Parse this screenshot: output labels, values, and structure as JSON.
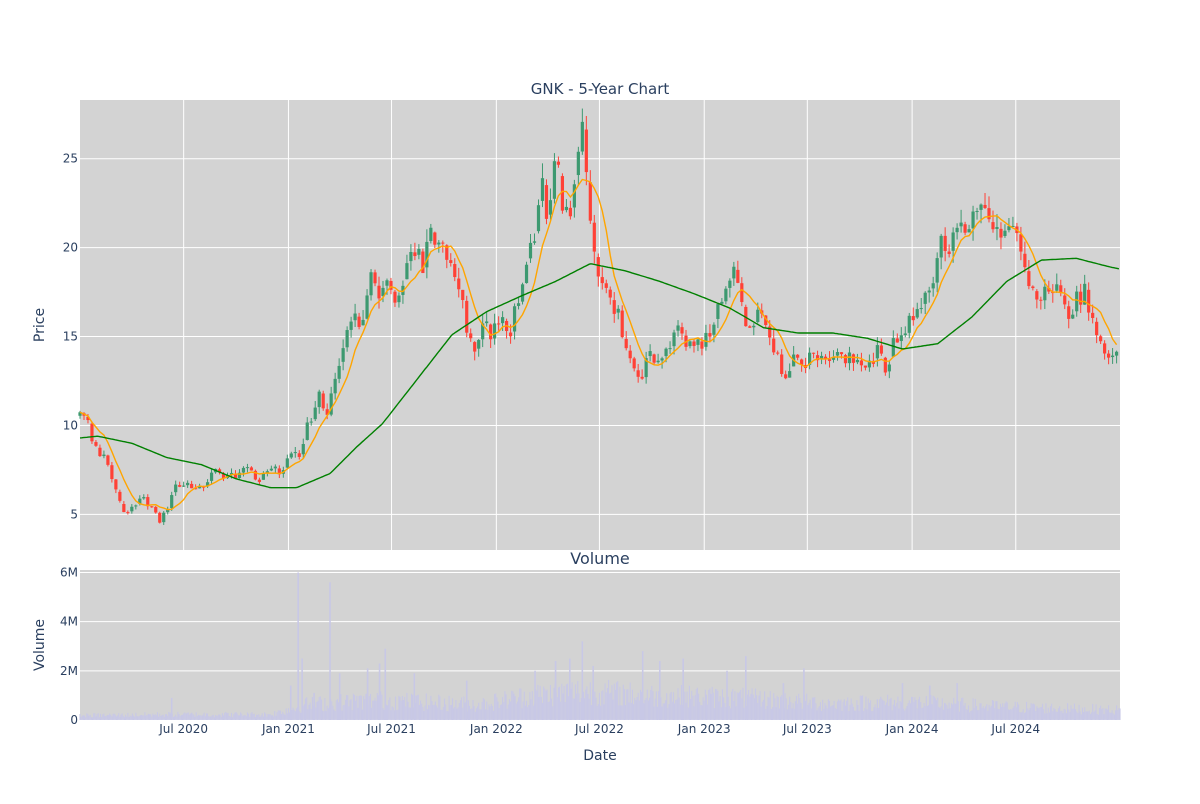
{
  "chart_data": [
    {
      "type": "candlestick",
      "title": "GNK - 5-Year Chart",
      "xlabel": "",
      "ylabel": "Price",
      "x_range": [
        "2020-01-01",
        "2024-12-31"
      ],
      "ylim": [
        3,
        28.3
      ],
      "y_ticks": [
        5,
        10,
        15,
        20,
        25
      ],
      "grid": true,
      "colors": {
        "plot_bg": "#d3d3d3",
        "grid": "#ffffff",
        "increasing": "#3d9970",
        "decreasing": "#ff4136",
        "ma_short": "#ffa500",
        "ma_long": "#008000"
      },
      "price_path": [
        [
          "2020-01-01",
          10.5
        ],
        [
          "2020-01-15",
          10.0
        ],
        [
          "2020-02-01",
          8.5
        ],
        [
          "2020-02-20",
          7.8
        ],
        [
          "2020-03-05",
          6.2
        ],
        [
          "2020-03-20",
          4.8
        ],
        [
          "2020-04-05",
          5.6
        ],
        [
          "2020-04-20",
          6.0
        ],
        [
          "2020-05-05",
          5.4
        ],
        [
          "2020-05-20",
          4.7
        ],
        [
          "2020-06-01",
          5.2
        ],
        [
          "2020-06-15",
          6.6
        ],
        [
          "2020-07-01",
          6.8
        ],
        [
          "2020-07-20",
          6.2
        ],
        [
          "2020-08-05",
          6.6
        ],
        [
          "2020-08-25",
          7.6
        ],
        [
          "2020-09-10",
          6.9
        ],
        [
          "2020-10-01",
          7.3
        ],
        [
          "2020-10-20",
          7.6
        ],
        [
          "2020-11-10",
          7.0
        ],
        [
          "2020-12-01",
          7.6
        ],
        [
          "2020-12-20",
          7.3
        ],
        [
          "2021-01-05",
          8.4
        ],
        [
          "2021-01-20",
          8.1
        ],
        [
          "2021-02-05",
          10.2
        ],
        [
          "2021-02-25",
          11.6
        ],
        [
          "2021-03-10",
          10.6
        ],
        [
          "2021-03-25",
          12.8
        ],
        [
          "2021-04-10",
          15.2
        ],
        [
          "2021-04-25",
          16.3
        ],
        [
          "2021-05-10",
          15.6
        ],
        [
          "2021-05-25",
          18.8
        ],
        [
          "2021-06-10",
          17.6
        ],
        [
          "2021-06-25",
          18.3
        ],
        [
          "2021-07-10",
          17.2
        ],
        [
          "2021-07-25",
          18.6
        ],
        [
          "2021-08-10",
          20.2
        ],
        [
          "2021-08-25",
          19.2
        ],
        [
          "2021-09-05",
          21.1
        ],
        [
          "2021-09-20",
          19.6
        ],
        [
          "2021-10-01",
          20.3
        ],
        [
          "2021-10-15",
          18.2
        ],
        [
          "2021-10-30",
          17.1
        ],
        [
          "2021-11-10",
          15.6
        ],
        [
          "2021-11-25",
          14.6
        ],
        [
          "2021-12-10",
          15.9
        ],
        [
          "2021-12-25",
          14.9
        ],
        [
          "2022-01-10",
          16.6
        ],
        [
          "2022-01-25",
          15.3
        ],
        [
          "2022-02-10",
          17.6
        ],
        [
          "2022-02-25",
          19.6
        ],
        [
          "2022-03-10",
          21.2
        ],
        [
          "2022-03-20",
          23.6
        ],
        [
          "2022-04-01",
          21.6
        ],
        [
          "2022-04-15",
          24.9
        ],
        [
          "2022-04-30",
          22.3
        ],
        [
          "2022-05-10",
          21.6
        ],
        [
          "2022-05-20",
          24.6
        ],
        [
          "2022-06-01",
          26.4
        ],
        [
          "2022-06-10",
          22.6
        ],
        [
          "2022-06-20",
          19.6
        ],
        [
          "2022-07-01",
          18.6
        ],
        [
          "2022-07-15",
          17.6
        ],
        [
          "2022-07-30",
          16.6
        ],
        [
          "2022-08-10",
          15.2
        ],
        [
          "2022-08-25",
          13.6
        ],
        [
          "2022-09-10",
          12.4
        ],
        [
          "2022-09-25",
          13.9
        ],
        [
          "2022-10-10",
          13.4
        ],
        [
          "2022-10-25",
          14.1
        ],
        [
          "2022-11-10",
          15.6
        ],
        [
          "2022-11-25",
          14.6
        ],
        [
          "2022-12-10",
          15.1
        ],
        [
          "2022-12-25",
          14.6
        ],
        [
          "2023-01-10",
          15.3
        ],
        [
          "2023-01-25",
          16.6
        ],
        [
          "2023-02-10",
          18.1
        ],
        [
          "2023-02-25",
          19.1
        ],
        [
          "2023-03-10",
          16.3
        ],
        [
          "2023-03-25",
          15.1
        ],
        [
          "2023-04-10",
          16.6
        ],
        [
          "2023-04-25",
          15.3
        ],
        [
          "2023-05-10",
          13.6
        ],
        [
          "2023-05-25",
          12.9
        ],
        [
          "2023-06-10",
          14.1
        ],
        [
          "2023-06-25",
          13.6
        ],
        [
          "2023-07-10",
          14.1
        ],
        [
          "2023-08-01",
          13.4
        ],
        [
          "2023-08-20",
          14.3
        ],
        [
          "2023-09-10",
          13.6
        ],
        [
          "2023-09-30",
          13.9
        ],
        [
          "2023-10-15",
          13.4
        ],
        [
          "2023-11-01",
          14.3
        ],
        [
          "2023-11-15",
          13.1
        ],
        [
          "2023-12-01",
          14.6
        ],
        [
          "2023-12-20",
          15.6
        ],
        [
          "2024-01-05",
          16.3
        ],
        [
          "2024-01-20",
          17.1
        ],
        [
          "2024-02-05",
          18.1
        ],
        [
          "2024-02-20",
          20.3
        ],
        [
          "2024-03-05",
          20.1
        ],
        [
          "2024-03-20",
          20.6
        ],
        [
          "2024-04-05",
          20.9
        ],
        [
          "2024-04-20",
          22.6
        ],
        [
          "2024-05-01",
          23.1
        ],
        [
          "2024-05-15",
          21.6
        ],
        [
          "2024-06-01",
          21.1
        ],
        [
          "2024-06-15",
          20.6
        ],
        [
          "2024-07-01",
          20.9
        ],
        [
          "2024-07-15",
          19.1
        ],
        [
          "2024-08-01",
          17.6
        ],
        [
          "2024-08-15",
          17.1
        ],
        [
          "2024-09-01",
          17.6
        ],
        [
          "2024-09-15",
          18.6
        ],
        [
          "2024-10-01",
          16.1
        ],
        [
          "2024-10-15",
          17.1
        ],
        [
          "2024-11-01",
          17.6
        ],
        [
          "2024-11-15",
          15.6
        ],
        [
          "2024-12-01",
          14.6
        ],
        [
          "2024-12-15",
          13.9
        ],
        [
          "2024-12-31",
          13.8
        ]
      ],
      "ma_long_path": [
        [
          "2020-01-01",
          9.3
        ],
        [
          "2020-02-01",
          9.4
        ],
        [
          "2020-04-01",
          9.0
        ],
        [
          "2020-06-01",
          8.2
        ],
        [
          "2020-08-01",
          7.8
        ],
        [
          "2020-10-01",
          7.0
        ],
        [
          "2020-12-01",
          6.5
        ],
        [
          "2021-01-15",
          6.5
        ],
        [
          "2021-03-15",
          7.3
        ],
        [
          "2021-05-01",
          8.8
        ],
        [
          "2021-06-15",
          10.1
        ],
        [
          "2021-08-15",
          12.6
        ],
        [
          "2021-10-15",
          15.1
        ],
        [
          "2021-12-15",
          16.4
        ],
        [
          "2022-02-15",
          17.3
        ],
        [
          "2022-04-15",
          18.1
        ],
        [
          "2022-06-15",
          19.1
        ],
        [
          "2022-08-15",
          18.7
        ],
        [
          "2022-10-15",
          18.1
        ],
        [
          "2022-12-15",
          17.4
        ],
        [
          "2023-02-15",
          16.6
        ],
        [
          "2023-04-15",
          15.5
        ],
        [
          "2023-06-15",
          15.2
        ],
        [
          "2023-08-15",
          15.2
        ],
        [
          "2023-10-15",
          14.9
        ],
        [
          "2023-12-15",
          14.3
        ],
        [
          "2024-02-15",
          14.6
        ],
        [
          "2024-04-15",
          16.1
        ],
        [
          "2024-06-15",
          18.1
        ],
        [
          "2024-08-15",
          19.3
        ],
        [
          "2024-10-15",
          19.4
        ],
        [
          "2024-12-15",
          18.9
        ],
        [
          "2024-12-31",
          18.8
        ]
      ]
    },
    {
      "type": "bar",
      "title": "Volume",
      "xlabel": "Date",
      "ylabel": "Volume",
      "x_ticks": [
        "Jul 2020",
        "Jan 2021",
        "Jul 2021",
        "Jan 2022",
        "Jul 2022",
        "Jan 2023",
        "Jul 2023",
        "Jan 2024",
        "Jul 2024"
      ],
      "x_tick_dates": [
        "2020-07-01",
        "2021-01-01",
        "2021-07-01",
        "2022-01-01",
        "2022-07-01",
        "2023-01-01",
        "2023-07-01",
        "2024-01-01",
        "2024-07-01"
      ],
      "ylim": [
        0,
        6100000
      ],
      "y_ticks": [
        0,
        2000000,
        4000000,
        6000000
      ],
      "y_tick_labels": [
        "0",
        "2M",
        "4M",
        "6M"
      ],
      "bar_color": "#c8c8e6",
      "volume_base": [
        [
          "2020-01-01",
          200000
        ],
        [
          "2020-06-01",
          250000
        ],
        [
          "2020-12-01",
          250000
        ],
        [
          "2021-02-01",
          700000
        ],
        [
          "2021-06-01",
          900000
        ],
        [
          "2021-12-01",
          700000
        ],
        [
          "2022-03-01",
          1100000
        ],
        [
          "2022-06-01",
          1300000
        ],
        [
          "2022-10-01",
          1100000
        ],
        [
          "2023-03-01",
          1000000
        ],
        [
          "2023-08-01",
          750000
        ],
        [
          "2024-01-01",
          800000
        ],
        [
          "2024-06-01",
          600000
        ],
        [
          "2024-12-31",
          450000
        ]
      ],
      "volume_spikes": [
        [
          "2020-06-10",
          900000
        ],
        [
          "2021-01-05",
          1400000
        ],
        [
          "2021-01-18",
          6000000
        ],
        [
          "2021-01-25",
          2500000
        ],
        [
          "2021-02-15",
          1100000
        ],
        [
          "2021-03-15",
          5600000
        ],
        [
          "2021-04-01",
          1900000
        ],
        [
          "2021-05-20",
          2100000
        ],
        [
          "2021-06-10",
          2300000
        ],
        [
          "2021-06-20",
          2900000
        ],
        [
          "2021-08-10",
          1900000
        ],
        [
          "2021-11-10",
          1600000
        ],
        [
          "2022-03-10",
          2000000
        ],
        [
          "2022-04-15",
          2400000
        ],
        [
          "2022-05-10",
          2500000
        ],
        [
          "2022-06-01",
          3200000
        ],
        [
          "2022-06-20",
          2200000
        ],
        [
          "2022-09-15",
          2800000
        ],
        [
          "2022-10-15",
          2400000
        ],
        [
          "2022-11-25",
          2500000
        ],
        [
          "2023-02-10",
          2000000
        ],
        [
          "2023-03-15",
          2600000
        ],
        [
          "2023-05-20",
          1500000
        ],
        [
          "2023-06-25",
          2100000
        ],
        [
          "2023-12-15",
          1500000
        ],
        [
          "2024-02-01",
          1400000
        ],
        [
          "2024-03-20",
          1500000
        ]
      ]
    }
  ]
}
